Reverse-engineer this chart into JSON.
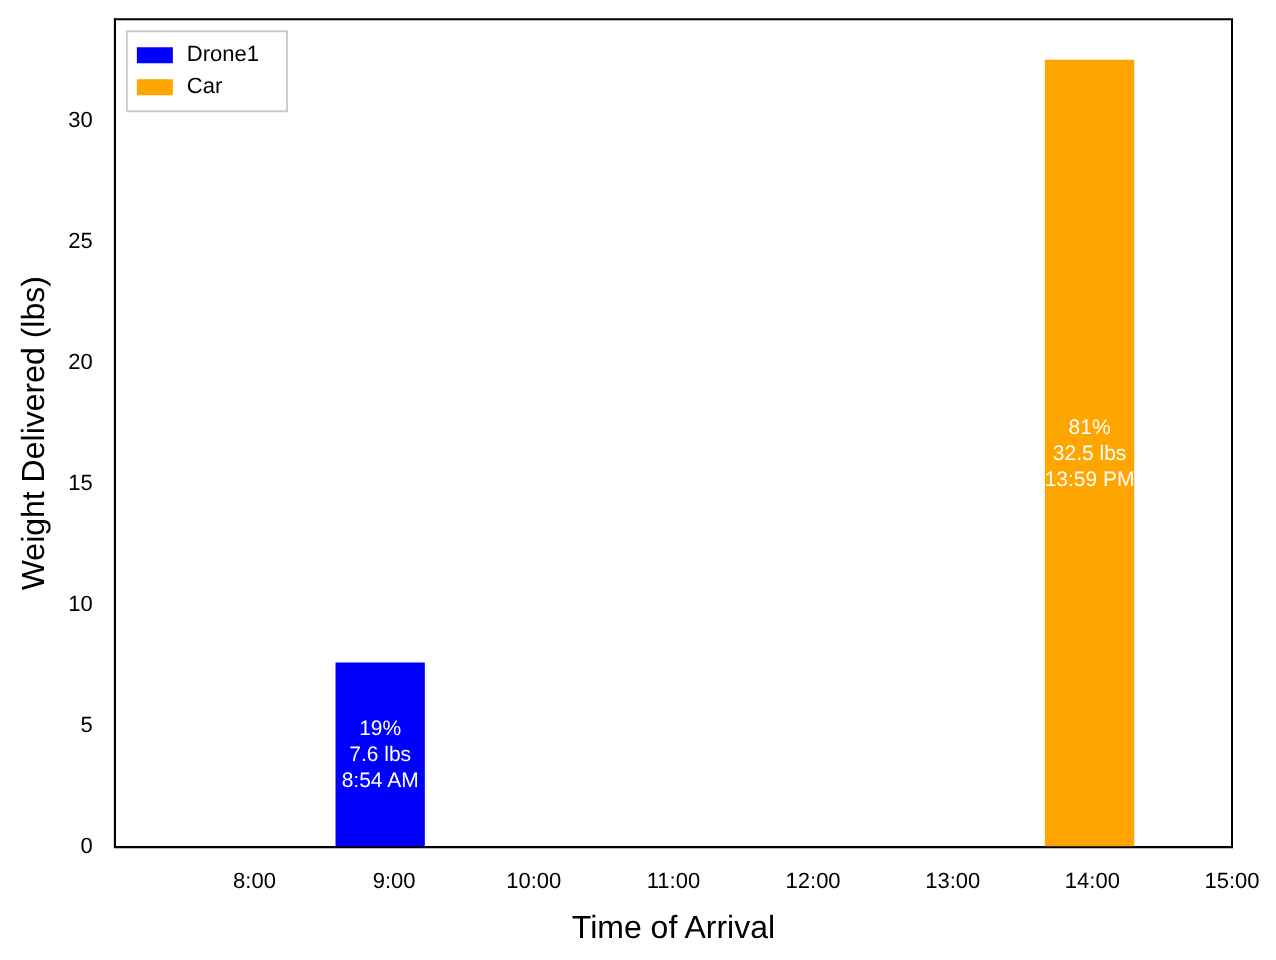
{
  "chart_data": {
    "type": "bar",
    "xlabel": "Time of Arrival",
    "ylabel": "Weight Delivered (lbs)",
    "xlim": [
      7,
      15
    ],
    "xticks": [
      {
        "value": 8,
        "label": "8:00"
      },
      {
        "value": 9,
        "label": "9:00"
      },
      {
        "value": 10,
        "label": "10:00"
      },
      {
        "value": 11,
        "label": "11:00"
      },
      {
        "value": 12,
        "label": "12:00"
      },
      {
        "value": 13,
        "label": "13:00"
      },
      {
        "value": 14,
        "label": "14:00"
      },
      {
        "value": 15,
        "label": "15:00"
      }
    ],
    "ylim": [
      0,
      34.2
    ],
    "yticks": [
      0,
      5,
      10,
      15,
      20,
      25,
      30
    ],
    "series": [
      {
        "name": "Drone1",
        "color": "#0000ff",
        "x": [
          8.9
        ],
        "values": [
          7.6
        ],
        "value_labels": [
          "19%\n7.6 lbs\n8:54 AM"
        ]
      },
      {
        "name": "Car",
        "color": "#ffa500",
        "x": [
          13.98
        ],
        "values": [
          32.5
        ],
        "value_labels": [
          "81%\n32.5 lbs\n13:59 PM"
        ]
      }
    ],
    "legend": "top left",
    "grid": false
  }
}
